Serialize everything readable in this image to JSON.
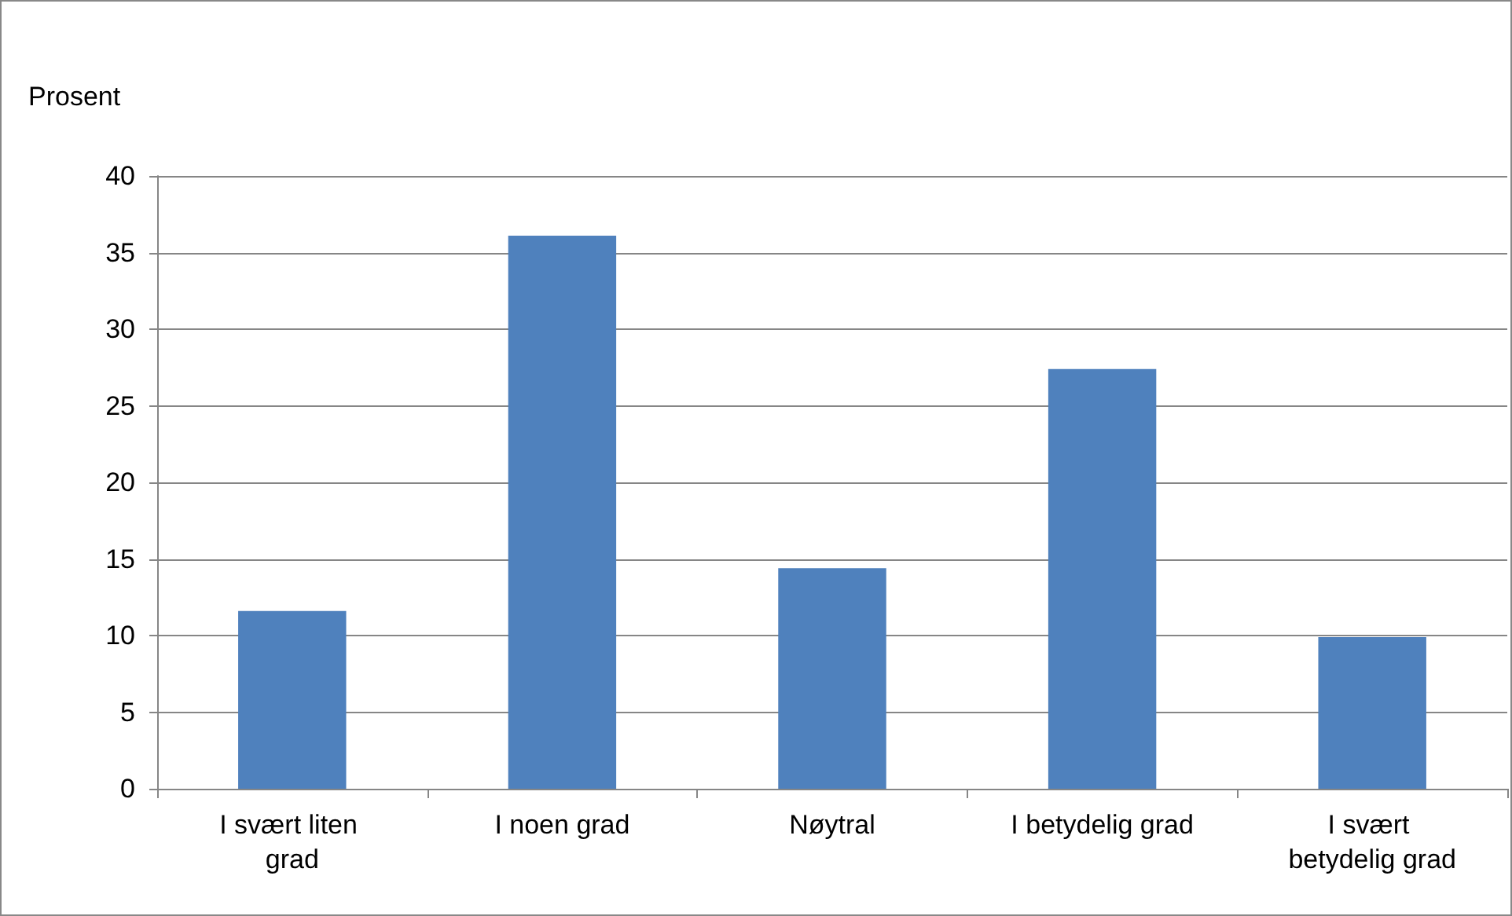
{
  "chart_data": {
    "type": "bar",
    "ylabel": "Prosent",
    "categories": [
      "I svært liten grad",
      "I noen grad",
      "Nøytral",
      "I betydelig grad",
      "I svært betydelig grad"
    ],
    "values": [
      11.6,
      36.1,
      14.4,
      27.4,
      9.9
    ],
    "color": "#4f81bd",
    "ylim": [
      0,
      40
    ],
    "yticks": [
      0,
      5,
      10,
      15,
      20,
      25,
      30,
      35,
      40
    ],
    "grid": "y"
  }
}
